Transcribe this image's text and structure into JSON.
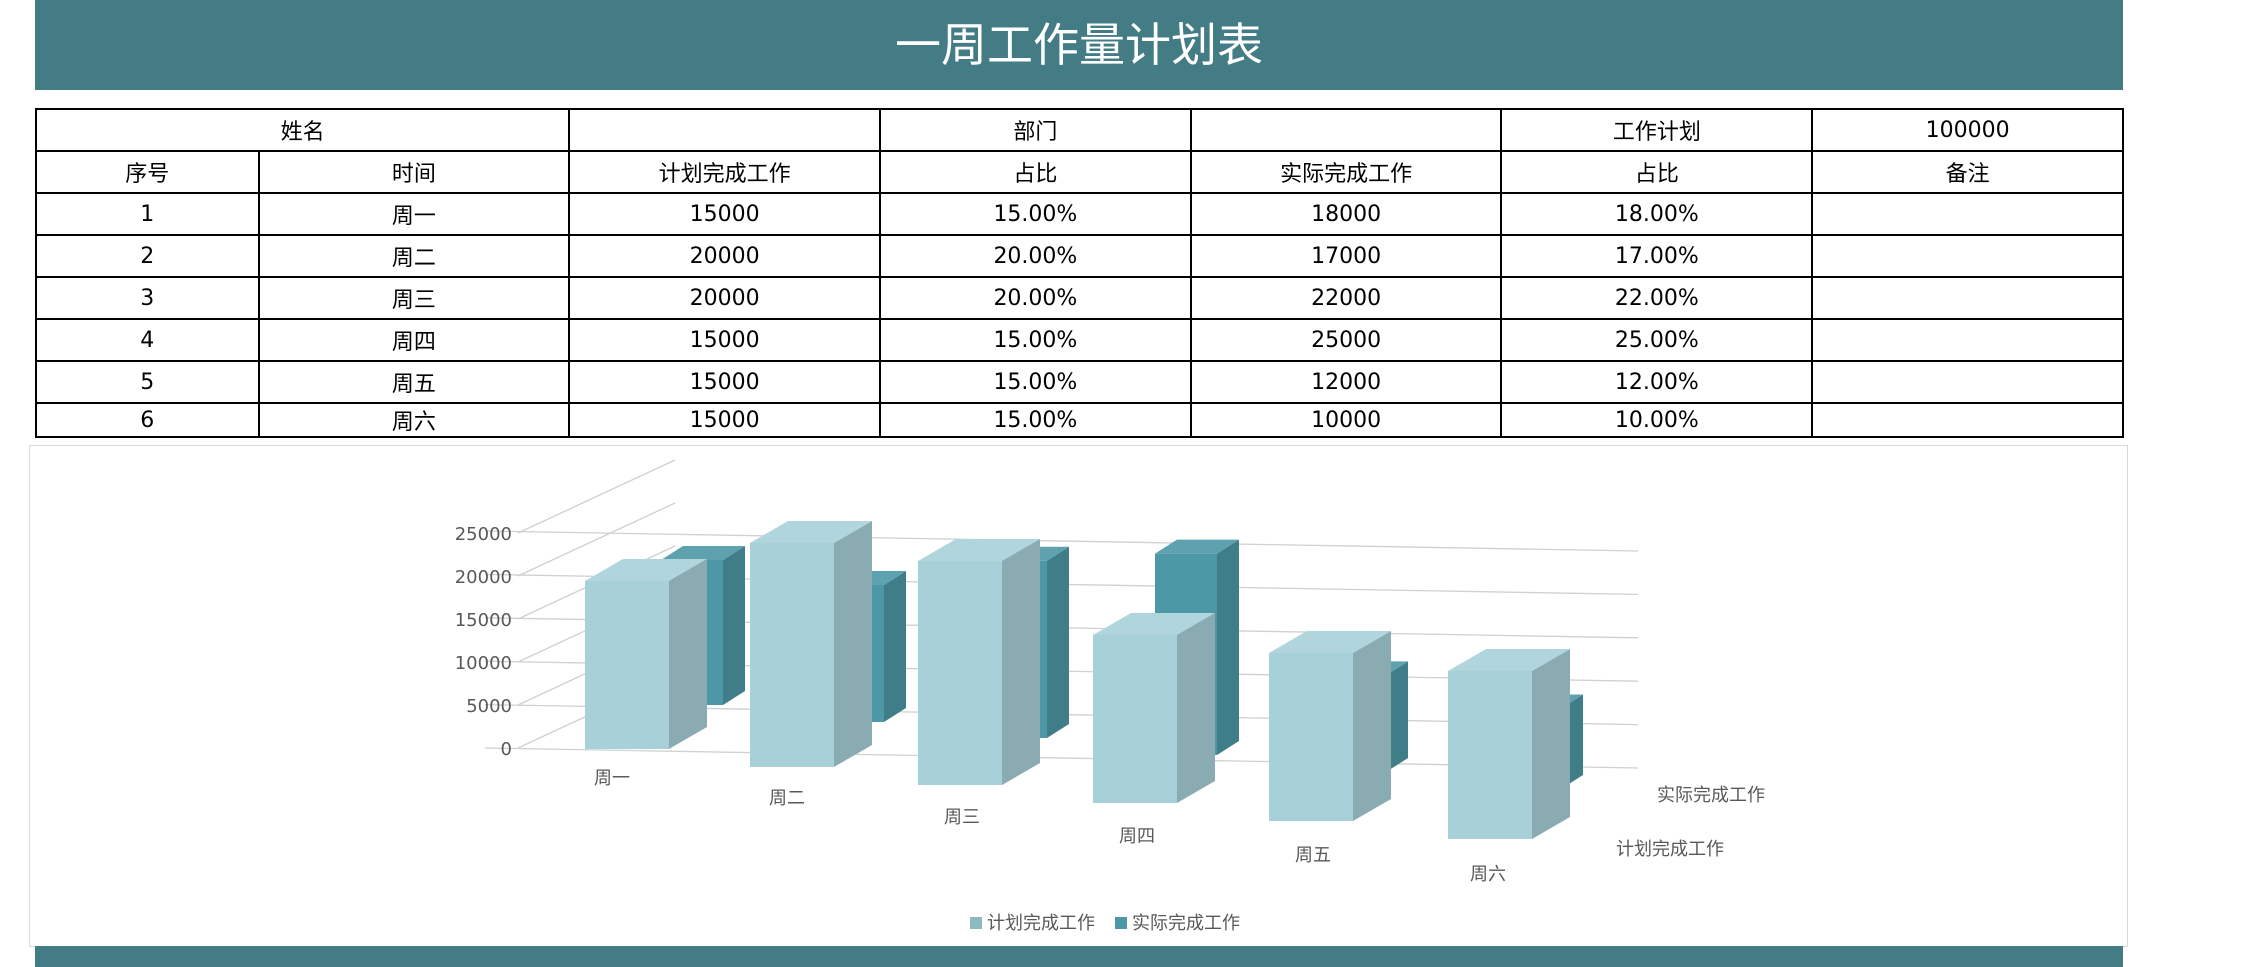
{
  "title": "一周工作量计划表",
  "info_row": {
    "name_label": "姓名",
    "name_value": "",
    "dept_label": "部门",
    "dept_value": "",
    "plan_label": "工作计划",
    "plan_value": "100000"
  },
  "headers": [
    "序号",
    "时间",
    "计划完成工作",
    "占比",
    "实际完成工作",
    "占比",
    "备注"
  ],
  "rows": [
    [
      "1",
      "周一",
      "15000",
      "15.00%",
      "18000",
      "18.00%",
      ""
    ],
    [
      "2",
      "周二",
      "20000",
      "20.00%",
      "17000",
      "17.00%",
      ""
    ],
    [
      "3",
      "周三",
      "20000",
      "20.00%",
      "22000",
      "22.00%",
      ""
    ],
    [
      "4",
      "周四",
      "15000",
      "15.00%",
      "25000",
      "25.00%",
      ""
    ],
    [
      "5",
      "周五",
      "15000",
      "15.00%",
      "12000",
      "12.00%",
      ""
    ],
    [
      "6",
      "周六",
      "15000",
      "15.00%",
      "10000",
      "10.00%",
      ""
    ]
  ],
  "chart_data": {
    "type": "bar",
    "categories": [
      "周一",
      "周二",
      "周三",
      "周四",
      "周五",
      "周六"
    ],
    "series": [
      {
        "name": "计划完成工作",
        "values": [
          15000,
          20000,
          20000,
          15000,
          15000,
          15000
        ],
        "color": "#a8d0d8"
      },
      {
        "name": "实际完成工作",
        "values": [
          18000,
          17000,
          22000,
          25000,
          12000,
          10000
        ],
        "color": "#4d98a6"
      }
    ],
    "yticks": [
      "0",
      "5000",
      "10000",
      "15000",
      "20000",
      "25000"
    ],
    "ylim": [
      0,
      25000
    ],
    "grid": true,
    "legend": "bottom"
  }
}
